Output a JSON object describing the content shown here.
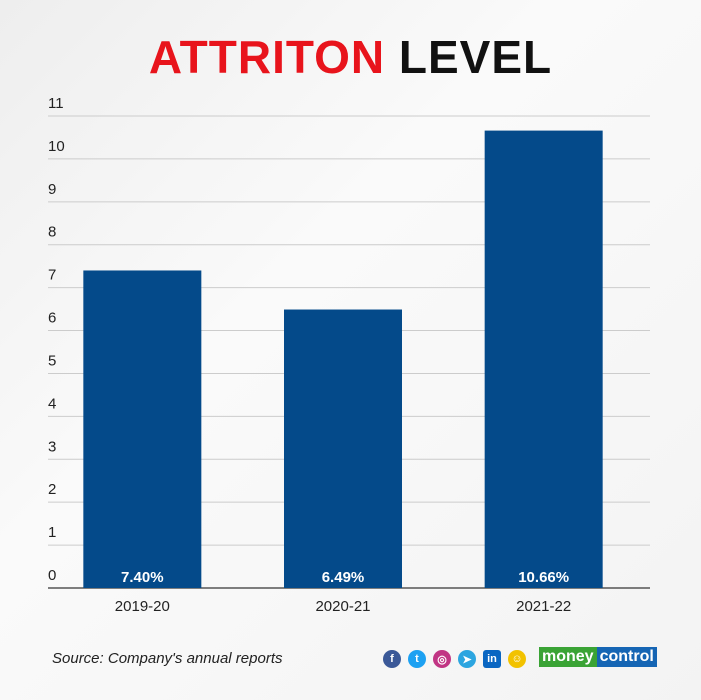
{
  "title": {
    "red": "ATTRITON",
    "black": "LEVEL"
  },
  "source": "Source: Company's annual reports",
  "social_icons": [
    "facebook-icon",
    "twitter-icon",
    "instagram-icon",
    "telegram-icon",
    "linkedin-icon",
    "snapchat-icon"
  ],
  "logo": {
    "part1": "money",
    "part2": "control",
    "color1": "#3aa335",
    "color2": "#1565b4"
  },
  "chart_data": {
    "type": "bar",
    "title": "ATTRITON LEVEL",
    "categories": [
      "2019-20",
      "2020-21",
      "2021-22"
    ],
    "values": [
      7.4,
      6.49,
      10.66
    ],
    "data_labels": [
      "7.40%",
      "6.49%",
      "10.66%"
    ],
    "yticks": [
      "0",
      "1",
      "2",
      "3",
      "4",
      "5",
      "6",
      "7",
      "8",
      "9",
      "10",
      "11"
    ],
    "ylim": [
      0,
      11
    ],
    "grid": true,
    "bar_color": "#044a8a"
  }
}
